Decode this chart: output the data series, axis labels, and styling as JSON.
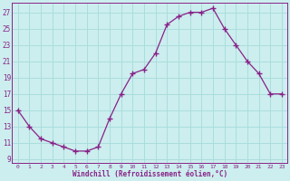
{
  "x": [
    0,
    1,
    2,
    3,
    4,
    5,
    6,
    7,
    8,
    9,
    10,
    11,
    12,
    13,
    14,
    15,
    16,
    17,
    18,
    19,
    20,
    21,
    22,
    23
  ],
  "y": [
    15,
    13,
    11.5,
    11,
    10.5,
    10,
    10,
    10.5,
    14,
    17,
    19.5,
    20,
    22,
    25.5,
    26.5,
    27,
    27,
    27.5,
    25,
    23,
    21,
    19.5,
    17,
    17
  ],
  "line_color": "#882288",
  "marker": "+",
  "marker_size": 4,
  "marker_color": "#882288",
  "bg_color": "#cceeee",
  "grid_color": "#aadddd",
  "axis_color": "#882288",
  "tick_label_color": "#882288",
  "xlabel": "Windchill (Refroidissement éolien,°C)",
  "xlabel_color": "#882288",
  "yticks": [
    9,
    11,
    13,
    15,
    17,
    19,
    21,
    23,
    25,
    27
  ],
  "xticks": [
    0,
    1,
    2,
    3,
    4,
    5,
    6,
    7,
    8,
    9,
    10,
    11,
    12,
    13,
    14,
    15,
    16,
    17,
    18,
    19,
    20,
    21,
    22,
    23
  ],
  "xlim": [
    -0.5,
    23.5
  ],
  "ylim": [
    8.5,
    28.2
  ]
}
